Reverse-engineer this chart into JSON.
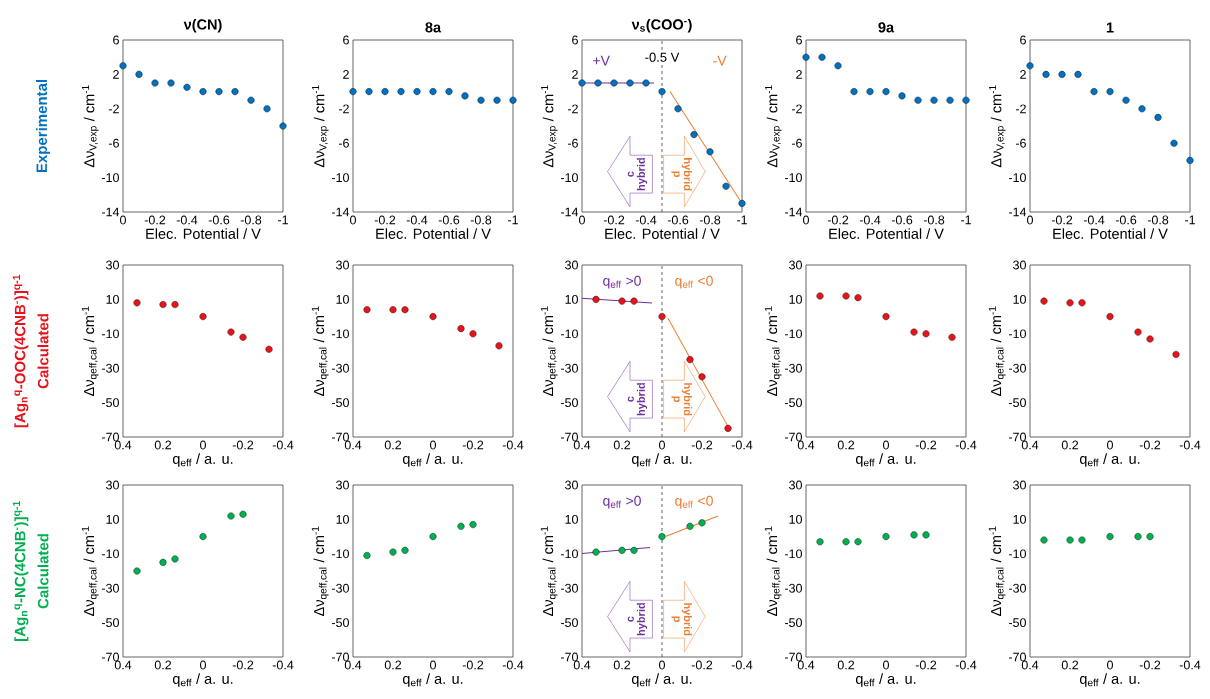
{
  "chart_data": [
    {
      "type": "scatter",
      "title": "ν(CN)",
      "xlabel": "Elec. Potential / V",
      "ylabel": "Δν$_{V,exp}$ / cm$^{-1}$",
      "annotations": [
        "**Experimental**"
      ],
      "xlim": [
        0,
        -1
      ],
      "ylim": [
        -14,
        6
      ],
      "xticks": [
        0,
        -0.2,
        -0.4,
        -0.6,
        -0.8,
        -1
      ],
      "yticks": [
        -14,
        -10,
        -6,
        -2,
        2,
        6
      ],
      "marker": "circle",
      "color": "#0070c0",
      "x": [
        0,
        -0.1,
        -0.2,
        -0.3,
        -0.4,
        -0.5,
        -0.6,
        -0.7,
        -0.8,
        -0.9,
        -1
      ],
      "values": [
        3,
        2,
        1,
        1,
        0.5,
        0,
        0,
        0,
        -1,
        -2,
        -4
      ]
    },
    {
      "type": "scatter",
      "title": "8a",
      "xlabel": "Elec. Potential / V",
      "ylabel": "Δν$_{V,exp}$ / cm$^{-1}$",
      "xlim": [
        0,
        -1
      ],
      "ylim": [
        -14,
        6
      ],
      "xticks": [
        0,
        -0.2,
        -0.4,
        -0.6,
        -0.8,
        -1
      ],
      "yticks": [
        -14,
        -10,
        -6,
        -2,
        2,
        6
      ],
      "marker": "circle",
      "color": "#0070c0",
      "x": [
        0,
        -0.1,
        -0.2,
        -0.3,
        -0.4,
        -0.5,
        -0.6,
        -0.7,
        -0.8,
        -0.9,
        -1
      ],
      "values": [
        0,
        0,
        0,
        0,
        0,
        0,
        0,
        -0.5,
        -1,
        -1,
        -1
      ]
    },
    {
      "type": "scatter",
      "title": "ν$_{s}$(COO$^{-}$)",
      "xlabel": "Elec. Potential / V",
      "ylabel": "Δν$_{V,exp}$ / cm$^{-1}$",
      "annotations": [
        "+V",
        "-V",
        "c",
        "hybrid",
        "p",
        "hybrid"
      ],
      "ref_lines": [
        {
          "axis": "x",
          "value": -0.5,
          "label": "-0.5 V",
          "color": "#404040",
          "line_style": "dashed"
        }
      ],
      "xlim": [
        0,
        -1
      ],
      "ylim": [
        -14,
        6
      ],
      "xticks": [
        0,
        -0.2,
        -0.4,
        -0.6,
        -0.8,
        -1
      ],
      "yticks": [
        -14,
        -10,
        -6,
        -2,
        2,
        6
      ],
      "x": [
        0,
        -0.1,
        -0.2,
        -0.3,
        -0.4,
        -0.5,
        -0.6,
        -0.7,
        -0.8,
        -0.9,
        -1
      ],
      "series": [
        {
          "type": "scatter",
          "marker": "circle",
          "color": "#0070c0",
          "values": [
            1,
            1,
            1,
            1,
            1,
            0,
            -2,
            -5,
            -7,
            -11,
            -13
          ]
        },
        {
          "type": "line",
          "color": "#7030a0",
          "x": [
            0,
            -0.45
          ],
          "values": [
            1,
            1
          ]
        },
        {
          "type": "line",
          "color": "#ed7d31",
          "x": [
            -0.55,
            -1
          ],
          "values": [
            0,
            -13
          ]
        }
      ]
    },
    {
      "type": "scatter",
      "title": "9a",
      "xlabel": "Elec. Potential / V",
      "ylabel": "Δν$_{V,exp}$ / cm$^{-1}$",
      "xlim": [
        0,
        -1
      ],
      "ylim": [
        -14,
        6
      ],
      "xticks": [
        0,
        -0.2,
        -0.4,
        -0.6,
        -0.8,
        -1
      ],
      "yticks": [
        -14,
        -10,
        -6,
        -2,
        2,
        6
      ],
      "marker": "circle",
      "color": "#0070c0",
      "x": [
        0,
        -0.1,
        -0.2,
        -0.3,
        -0.4,
        -0.5,
        -0.6,
        -0.7,
        -0.8,
        -0.9,
        -1
      ],
      "values": [
        4,
        4,
        3,
        0,
        0,
        0,
        -0.5,
        -1,
        -1,
        -1,
        -1
      ]
    },
    {
      "type": "scatter",
      "title": "1",
      "xlabel": "Elec. Potential / V",
      "ylabel": "Δν$_{V,exp}$ / cm$^{-1}$",
      "xlim": [
        0,
        -1
      ],
      "ylim": [
        -14,
        6
      ],
      "xticks": [
        0,
        -0.2,
        -0.4,
        -0.6,
        -0.8,
        -1
      ],
      "yticks": [
        -14,
        -10,
        -6,
        -2,
        2,
        6
      ],
      "marker": "circle",
      "color": "#0070c0",
      "x": [
        0,
        -0.1,
        -0.2,
        -0.3,
        -0.4,
        -0.5,
        -0.6,
        -0.7,
        -0.8,
        -0.9,
        -1
      ],
      "values": [
        3,
        2,
        2,
        2,
        0,
        0,
        -1,
        -2,
        -3,
        -6,
        -8
      ]
    },
    {
      "type": "scatter",
      "xlabel": "q$_{eff}$ / a. u.",
      "ylabel": "Δν$_{qeff,cal}$ / cm$^{-1}$",
      "annotations": [
        "**[Ag$_{n}$$^{q}$-OOC(4CNB$^{-}$)]$^{q-1}$**",
        "**Calculated**"
      ],
      "xlim": [
        0.4,
        -0.4
      ],
      "ylim": [
        -70,
        30
      ],
      "xticks": [
        0.4,
        0.2,
        0,
        -0.2,
        -0.4
      ],
      "yticks": [
        -70,
        -50,
        -30,
        -10,
        10,
        30
      ],
      "marker": "circle",
      "color": "#e8141b",
      "x": [
        0.33,
        0.2,
        0.14,
        0,
        -0.14,
        -0.2,
        -0.33
      ],
      "values": [
        8,
        7,
        7,
        0,
        -9,
        -12,
        -19
      ]
    },
    {
      "type": "scatter",
      "xlabel": "q$_{eff}$ / a. u.",
      "ylabel": "Δν$_{qeff,cal}$ / cm$^{-1}$",
      "xlim": [
        0.4,
        -0.4
      ],
      "ylim": [
        -70,
        30
      ],
      "xticks": [
        0.4,
        0.2,
        0,
        -0.2,
        -0.4
      ],
      "yticks": [
        -70,
        -50,
        -30,
        -10,
        10,
        30
      ],
      "marker": "circle",
      "color": "#e8141b",
      "x": [
        0.33,
        0.2,
        0.14,
        0,
        -0.14,
        -0.2,
        -0.33
      ],
      "values": [
        4,
        4,
        4,
        0,
        -7,
        -10,
        -17
      ]
    },
    {
      "type": "scatter",
      "xlabel": "q$_{eff}$ / a. u.",
      "ylabel": "Δν$_{qeff,cal}$ / cm$^{-1}$",
      "annotations": [
        "q$_{eff}$ >0",
        "q$_{eff}$ <0",
        "c",
        "hybrid",
        "p",
        "hybrid"
      ],
      "ref_lines": [
        {
          "axis": "x",
          "value": 0,
          "color": "#404040",
          "line_style": "dashed"
        }
      ],
      "xlim": [
        0.4,
        -0.4
      ],
      "ylim": [
        -70,
        30
      ],
      "xticks": [
        0.4,
        0.2,
        0,
        -0.2,
        -0.4
      ],
      "yticks": [
        -70,
        -50,
        -30,
        -10,
        10,
        30
      ],
      "x": [
        0.33,
        0.2,
        0.14,
        0,
        -0.14,
        -0.2,
        -0.33
      ],
      "series": [
        {
          "type": "scatter",
          "marker": "circle",
          "color": "#e8141b",
          "values": [
            10,
            9,
            9,
            0,
            -25,
            -35,
            -65
          ]
        },
        {
          "type": "line",
          "color": "#7030a0",
          "x": [
            0.4,
            0.05
          ],
          "values": [
            10.7,
            7.9
          ]
        },
        {
          "type": "line",
          "color": "#ed7d31",
          "x": [
            -0.03,
            -0.34
          ],
          "values": [
            -1,
            -66
          ]
        }
      ]
    },
    {
      "type": "scatter",
      "xlabel": "q$_{eff}$ / a. u.",
      "ylabel": "Δν$_{qeff,cal}$ / cm$^{-1}$",
      "xlim": [
        0.4,
        -0.4
      ],
      "ylim": [
        -70,
        30
      ],
      "xticks": [
        0.4,
        0.2,
        0,
        -0.2,
        -0.4
      ],
      "yticks": [
        -70,
        -50,
        -30,
        -10,
        10,
        30
      ],
      "marker": "circle",
      "color": "#e8141b",
      "x": [
        0.33,
        0.2,
        0.14,
        0,
        -0.14,
        -0.2,
        -0.33
      ],
      "values": [
        12,
        12,
        11,
        0,
        -9,
        -10,
        -12
      ]
    },
    {
      "type": "scatter",
      "xlabel": "q$_{eff}$ / a. u.",
      "ylabel": "Δν$_{qeff,cal}$ / cm$^{-1}$",
      "xlim": [
        0.4,
        -0.4
      ],
      "ylim": [
        -70,
        30
      ],
      "xticks": [
        0.4,
        0.2,
        0,
        -0.2,
        -0.4
      ],
      "yticks": [
        -70,
        -50,
        -30,
        -10,
        10,
        30
      ],
      "marker": "circle",
      "color": "#e8141b",
      "x": [
        0.33,
        0.2,
        0.14,
        0,
        -0.14,
        -0.2,
        -0.33
      ],
      "values": [
        9,
        8,
        8,
        0,
        -9,
        -13,
        -22
      ]
    },
    {
      "type": "scatter",
      "xlabel": "q$_{eff}$ / a. u.",
      "ylabel": "Δν$_{qeff,cal}$ / cm$^{-1}$",
      "annotations": [
        "**[Ag$_{n}$$^{q}$-NC(4CNB$^{-}$)]$^{q-1}$**",
        "**Calculated**"
      ],
      "xlim": [
        0.4,
        -0.4
      ],
      "ylim": [
        -70,
        30
      ],
      "xticks": [
        0.4,
        0.2,
        0,
        -0.2,
        -0.4
      ],
      "yticks": [
        -70,
        -50,
        -30,
        -10,
        10,
        30
      ],
      "marker": "circle",
      "color": "#00b050",
      "x": [
        0.33,
        0.2,
        0.14,
        0,
        -0.14,
        -0.2
      ],
      "values": [
        -20,
        -15,
        -13,
        0,
        12,
        13
      ]
    },
    {
      "type": "scatter",
      "xlabel": "q$_{eff}$ / a. u.",
      "ylabel": "Δν$_{qeff,cal}$ / cm$^{-1}$",
      "xlim": [
        0.4,
        -0.4
      ],
      "ylim": [
        -70,
        30
      ],
      "xticks": [
        0.4,
        0.2,
        0,
        -0.2,
        -0.4
      ],
      "yticks": [
        -70,
        -50,
        -30,
        -10,
        10,
        30
      ],
      "marker": "circle",
      "color": "#00b050",
      "x": [
        0.33,
        0.2,
        0.14,
        0,
        -0.14,
        -0.2
      ],
      "values": [
        -11,
        -9,
        -8,
        0,
        6,
        7
      ]
    },
    {
      "type": "scatter",
      "xlabel": "q$_{eff}$ / a. u.",
      "ylabel": "Δν$_{qeff,cal}$ / cm$^{-1}$",
      "annotations": [
        "q$_{eff}$ >0",
        "q$_{eff}$ <0",
        "c",
        "hybrid",
        "p",
        "hybrid"
      ],
      "ref_lines": [
        {
          "axis": "x",
          "value": 0,
          "color": "#404040",
          "line_style": "dashed"
        }
      ],
      "xlim": [
        0.4,
        -0.4
      ],
      "ylim": [
        -70,
        30
      ],
      "xticks": [
        0.4,
        0.2,
        0,
        -0.2,
        -0.4
      ],
      "yticks": [
        -70,
        -50,
        -30,
        -10,
        10,
        30
      ],
      "x": [
        0.33,
        0.2,
        0.14,
        0,
        -0.14,
        -0.2
      ],
      "series": [
        {
          "type": "scatter",
          "marker": "circle",
          "color": "#00b050",
          "values": [
            -9,
            -8,
            -8,
            0,
            6,
            8
          ]
        },
        {
          "type": "line",
          "color": "#7030a0",
          "x": [
            0.4,
            0.06
          ],
          "values": [
            -9.8,
            -6.3
          ]
        },
        {
          "type": "line",
          "color": "#ed7d31",
          "x": [
            -0.02,
            -0.28
          ],
          "values": [
            0.2,
            12
          ]
        }
      ]
    },
    {
      "type": "scatter",
      "xlabel": "q$_{eff}$ / a. u.",
      "ylabel": "Δν$_{qeff,cal}$ / cm$^{-1}$",
      "xlim": [
        0.4,
        -0.4
      ],
      "ylim": [
        -70,
        30
      ],
      "xticks": [
        0.4,
        0.2,
        0,
        -0.2,
        -0.4
      ],
      "yticks": [
        -70,
        -50,
        -30,
        -10,
        10,
        30
      ],
      "marker": "circle",
      "color": "#00b050",
      "x": [
        0.33,
        0.2,
        0.14,
        0,
        -0.14,
        -0.2
      ],
      "values": [
        -3,
        -3,
        -3,
        0,
        1,
        1
      ]
    },
    {
      "type": "scatter",
      "xlabel": "q$_{eff}$ / a. u.",
      "ylabel": "Δν$_{qeff,cal}$ / cm$^{-1}$",
      "xlim": [
        0.4,
        -0.4
      ],
      "ylim": [
        -70,
        30
      ],
      "xticks": [
        0.4,
        0.2,
        0,
        -0.2,
        -0.4
      ],
      "yticks": [
        -70,
        -50,
        -30,
        -10,
        10,
        30
      ],
      "marker": "circle",
      "color": "#00b050",
      "x": [
        0.33,
        0.2,
        0.14,
        0,
        -0.14,
        -0.2
      ],
      "values": [
        -2,
        -2,
        -2,
        0,
        0,
        0
      ]
    }
  ]
}
